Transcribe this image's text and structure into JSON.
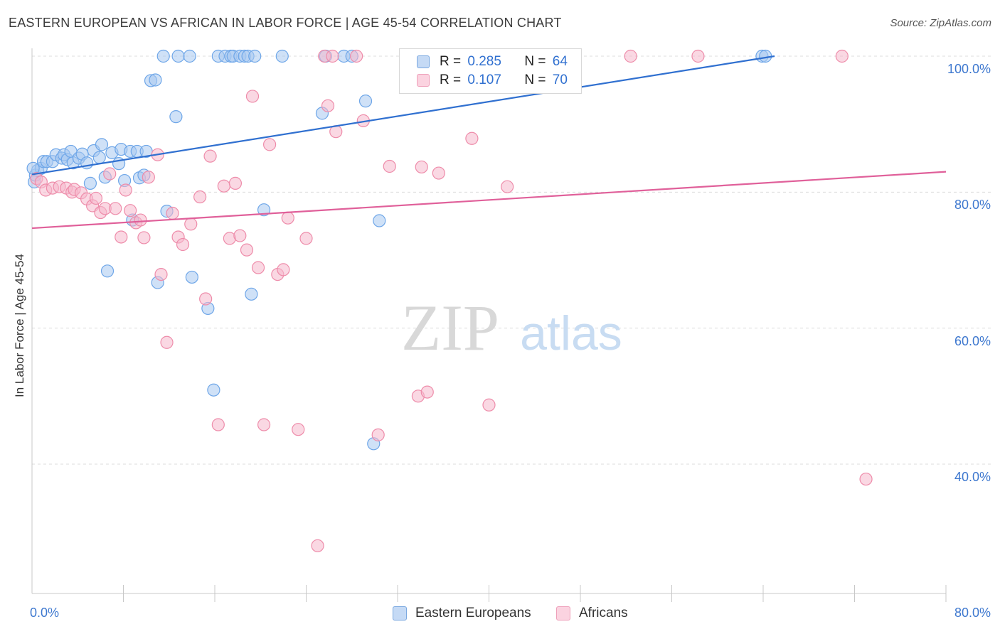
{
  "header": {
    "title": "EASTERN EUROPEAN VS AFRICAN IN LABOR FORCE | AGE 45-54 CORRELATION CHART",
    "source": "Source: ZipAtlas.com"
  },
  "watermark": {
    "zip": "ZIP",
    "atlas": "atlas"
  },
  "legend": {
    "r_label": "R =",
    "n_label": "N =",
    "rows": [
      {
        "r": "0.285",
        "n": "64",
        "color": "#a8c8f0"
      },
      {
        "r": "0.107",
        "n": "70",
        "color": "#f6b8cc"
      }
    ]
  },
  "bottom_legend": [
    {
      "label": "Eastern Europeans",
      "color": "#a8c8f0"
    },
    {
      "label": "Africans",
      "color": "#f6b8cc"
    }
  ],
  "chart_data": {
    "type": "scatter",
    "title": "EASTERN EUROPEAN VS AFRICAN IN LABOR FORCE | AGE 45-54 CORRELATION CHART",
    "xlabel": "",
    "ylabel": "In Labor Force | Age 45-54",
    "xlim": [
      0,
      80
    ],
    "ylim": [
      20,
      103
    ],
    "x_tick_labels": [
      "0.0%",
      "80.0%"
    ],
    "y_tick_labels": [
      "100.0%",
      "80.0%",
      "60.0%",
      "40.0%"
    ],
    "y_ticks": [
      100,
      80,
      60,
      40
    ],
    "grid": true,
    "series": [
      {
        "name": "Eastern Europeans",
        "color": "#6ea6e8",
        "fill": "#a8c8f0",
        "line_color": "#3070d0",
        "trend": {
          "x": [
            0,
            65
          ],
          "y": [
            82.6,
            100
          ]
        },
        "points": [
          [
            0.2,
            81.5
          ],
          [
            0.3,
            82.5
          ],
          [
            0.5,
            83.2
          ],
          [
            0.8,
            83.5
          ],
          [
            1.0,
            84.5
          ],
          [
            1.3,
            84.5
          ],
          [
            1.8,
            84.5
          ],
          [
            2.1,
            85.5
          ],
          [
            2.6,
            85.0
          ],
          [
            2.8,
            85.5
          ],
          [
            3.1,
            84.8
          ],
          [
            3.4,
            86.0
          ],
          [
            3.6,
            84.3
          ],
          [
            4.1,
            85.0
          ],
          [
            4.4,
            85.6
          ],
          [
            4.8,
            84.3
          ],
          [
            5.1,
            81.3
          ],
          [
            5.4,
            86.1
          ],
          [
            5.9,
            85.1
          ],
          [
            6.1,
            87.0
          ],
          [
            6.4,
            82.2
          ],
          [
            6.6,
            68.4
          ],
          [
            7.0,
            85.8
          ],
          [
            7.6,
            84.2
          ],
          [
            7.8,
            86.3
          ],
          [
            8.1,
            81.7
          ],
          [
            8.6,
            86.0
          ],
          [
            8.8,
            75.9
          ],
          [
            9.2,
            86.0
          ],
          [
            9.4,
            82.1
          ],
          [
            9.8,
            82.5
          ],
          [
            10.0,
            86.0
          ],
          [
            10.4,
            96.4
          ],
          [
            10.8,
            96.5
          ],
          [
            11.0,
            66.7
          ],
          [
            11.5,
            100
          ],
          [
            11.8,
            77.2
          ],
          [
            12.6,
            91.1
          ],
          [
            12.8,
            100
          ],
          [
            13.8,
            100
          ],
          [
            14.0,
            67.5
          ],
          [
            15.4,
            62.9
          ],
          [
            15.9,
            50.9
          ],
          [
            16.3,
            100
          ],
          [
            16.9,
            100
          ],
          [
            17.4,
            100
          ],
          [
            17.6,
            100
          ],
          [
            18.2,
            100
          ],
          [
            18.6,
            100
          ],
          [
            18.9,
            100
          ],
          [
            19.2,
            65.0
          ],
          [
            19.5,
            100
          ],
          [
            20.3,
            77.4
          ],
          [
            21.9,
            100
          ],
          [
            25.4,
            91.6
          ],
          [
            25.7,
            100
          ],
          [
            27.3,
            100
          ],
          [
            28.0,
            100
          ],
          [
            29.2,
            93.4
          ],
          [
            30.4,
            75.8
          ],
          [
            29.9,
            43.0
          ],
          [
            63.9,
            100
          ],
          [
            64.2,
            100
          ],
          [
            0.1,
            83.5
          ]
        ]
      },
      {
        "name": "Africans",
        "color": "#ee8caa",
        "fill": "#f6b8cc",
        "line_color": "#e0609a",
        "trend": {
          "x": [
            0,
            80
          ],
          "y": [
            74.7,
            83.0
          ]
        },
        "points": [
          [
            0.4,
            82.0
          ],
          [
            0.8,
            81.5
          ],
          [
            1.2,
            80.3
          ],
          [
            1.8,
            80.6
          ],
          [
            2.4,
            80.8
          ],
          [
            3.0,
            80.6
          ],
          [
            3.5,
            80.0
          ],
          [
            3.7,
            80.4
          ],
          [
            4.3,
            79.9
          ],
          [
            4.8,
            79.0
          ],
          [
            5.3,
            78.0
          ],
          [
            5.6,
            79.1
          ],
          [
            6.0,
            77.0
          ],
          [
            6.4,
            77.6
          ],
          [
            6.8,
            82.7
          ],
          [
            7.3,
            77.6
          ],
          [
            7.8,
            73.4
          ],
          [
            8.2,
            80.3
          ],
          [
            8.6,
            77.3
          ],
          [
            9.1,
            75.5
          ],
          [
            9.5,
            75.9
          ],
          [
            9.8,
            73.3
          ],
          [
            10.2,
            82.2
          ],
          [
            11.0,
            85.5
          ],
          [
            11.3,
            67.9
          ],
          [
            11.8,
            57.9
          ],
          [
            12.3,
            76.9
          ],
          [
            12.8,
            73.4
          ],
          [
            13.2,
            72.3
          ],
          [
            13.9,
            75.3
          ],
          [
            14.7,
            79.3
          ],
          [
            15.2,
            64.3
          ],
          [
            15.6,
            85.3
          ],
          [
            16.3,
            45.8
          ],
          [
            16.8,
            80.9
          ],
          [
            17.3,
            73.2
          ],
          [
            17.8,
            81.3
          ],
          [
            18.2,
            73.6
          ],
          [
            18.8,
            71.5
          ],
          [
            19.3,
            94.1
          ],
          [
            19.8,
            68.9
          ],
          [
            20.3,
            45.8
          ],
          [
            20.8,
            87.0
          ],
          [
            21.5,
            67.9
          ],
          [
            22.0,
            68.6
          ],
          [
            22.4,
            76.2
          ],
          [
            23.3,
            45.1
          ],
          [
            24.0,
            73.2
          ],
          [
            25.0,
            28.0
          ],
          [
            25.6,
            100
          ],
          [
            25.9,
            92.7
          ],
          [
            26.3,
            100
          ],
          [
            26.6,
            88.9
          ],
          [
            28.4,
            100
          ],
          [
            29.0,
            90.5
          ],
          [
            30.3,
            44.3
          ],
          [
            31.3,
            83.8
          ],
          [
            33.8,
            50.0
          ],
          [
            34.6,
            50.6
          ],
          [
            34.1,
            83.7
          ],
          [
            35.3,
            100
          ],
          [
            35.6,
            82.8
          ],
          [
            38.5,
            87.9
          ],
          [
            40.0,
            48.7
          ],
          [
            41.6,
            80.8
          ],
          [
            43.2,
            100
          ],
          [
            52.4,
            100
          ],
          [
            58.3,
            100
          ],
          [
            70.9,
            100
          ],
          [
            73.0,
            37.8
          ]
        ]
      }
    ]
  }
}
